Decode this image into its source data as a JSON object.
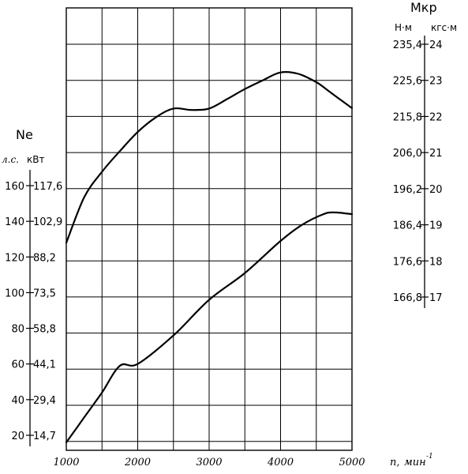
{
  "chart_data": {
    "type": "line",
    "x": [
      1000,
      1250,
      1500,
      1750,
      2000,
      2250,
      2500,
      2750,
      3000,
      3250,
      3500,
      3750,
      4000,
      4250,
      4500,
      4650,
      4800,
      5000
    ],
    "xlim": [
      1000,
      5000
    ],
    "xticks": [
      "1000",
      "2000",
      "3000",
      "4000",
      "5000"
    ],
    "xlabel": {
      "quantity": "n,",
      "unit": "мин",
      "exponent": "-1"
    },
    "series": [
      {
        "axis": "left",
        "values": [
          16,
          34,
          52,
          67,
          60,
          68,
          77,
          85,
          96,
          103,
          111,
          119,
          129,
          136,
          144,
          145,
          144,
          144
        ],
        "x": [
          1000,
          1250,
          1500,
          1750,
          2000,
          2250,
          2500,
          2750,
          3000,
          3250,
          3500,
          3750,
          4000,
          4250,
          4500,
          4650,
          4800,
          5000
        ]
      },
      {
        "axis": "right",
        "values_kgf_m": [
          18.5,
          19.76,
          20.47,
          21.04,
          21.57,
          21.97,
          22.22,
          22.18,
          22.22,
          22.48,
          22.76,
          23.0,
          23.22,
          23.18,
          22.95,
          22.74,
          22.52,
          22.23
        ]
      }
    ],
    "left_axis": {
      "name": "Ne",
      "unit_hp": "л.с.",
      "unit_kw": "кВт",
      "ylim_hp": [
        10,
        220
      ],
      "ticks": [
        {
          "hp": "20",
          "kw": "14,7"
        },
        {
          "hp": "40",
          "kw": "29,4"
        },
        {
          "hp": "60",
          "kw": "44,1"
        },
        {
          "hp": "80",
          "kw": "58,8"
        },
        {
          "hp": "100",
          "kw": "73,5"
        },
        {
          "hp": "120",
          "kw": "88,2"
        },
        {
          "hp": "140",
          "kw": "102,9"
        },
        {
          "hp": "160",
          "kw": "117,6"
        }
      ]
    },
    "right_axis": {
      "name": "Mкр",
      "unit_nm": "Н·м",
      "unit_kgfm": "кгс·м",
      "ticks": [
        {
          "nm": "166,8",
          "kgfm": "17"
        },
        {
          "nm": "176,6",
          "kgfm": "18"
        },
        {
          "nm": "186,4",
          "kgfm": "19"
        },
        {
          "nm": "196,2",
          "kgfm": "20"
        },
        {
          "nm": "206,0",
          "kgfm": "21"
        },
        {
          "nm": "215,8",
          "kgfm": "22"
        },
        {
          "nm": "225,6",
          "kgfm": "23"
        },
        {
          "nm": "235,4",
          "kgfm": "24"
        }
      ]
    },
    "grid": true
  }
}
